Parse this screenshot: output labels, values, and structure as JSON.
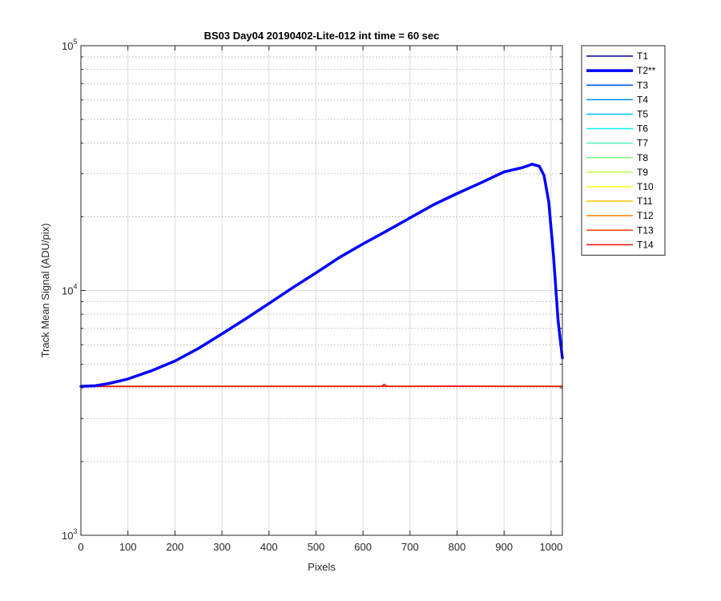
{
  "chart_data": {
    "type": "line",
    "title": "BS03 Day04 20190402-Lite-012 int time = 60 sec",
    "xlabel": "Pixels",
    "ylabel": "Track Mean Signal (ADU/pix)",
    "xlim": [
      0,
      1024
    ],
    "ylim": [
      1000,
      100000
    ],
    "yscale": "log",
    "grid": true,
    "legend_position": "outside-top-right",
    "xticks": [
      0,
      100,
      200,
      300,
      400,
      500,
      600,
      700,
      800,
      900,
      1000
    ],
    "xtick_labels": [
      "0",
      "100",
      "200",
      "300",
      "400",
      "500",
      "600",
      "700",
      "800",
      "900",
      "1000"
    ],
    "yticks": [
      1000,
      10000,
      100000
    ],
    "ytick_labels": [
      {
        "base": "10",
        "exp": "3"
      },
      {
        "base": "10",
        "exp": "4"
      },
      {
        "base": "10",
        "exp": "5"
      }
    ],
    "series": [
      {
        "name": "T1",
        "color": "#00008F",
        "highlight": false,
        "x": [
          0,
          1024
        ],
        "y": [
          4060,
          4060
        ]
      },
      {
        "name": "T2**",
        "color": "#0000FF",
        "highlight": true,
        "x": [
          0,
          30,
          60,
          100,
          150,
          200,
          250,
          300,
          350,
          400,
          450,
          500,
          550,
          600,
          650,
          700,
          750,
          800,
          850,
          900,
          940,
          960,
          975,
          985,
          995,
          1005,
          1015,
          1024
        ],
        "y": [
          4060,
          4080,
          4170,
          4350,
          4700,
          5150,
          5800,
          6650,
          7650,
          8850,
          10250,
          11800,
          13650,
          15500,
          17500,
          19800,
          22400,
          24900,
          27500,
          30500,
          31800,
          32800,
          32200,
          29500,
          23000,
          14000,
          7500,
          5300
        ]
      },
      {
        "name": "T3",
        "color": "#0050FF",
        "highlight": false,
        "x": [
          0,
          1024
        ],
        "y": [
          4060,
          4060
        ]
      },
      {
        "name": "T4",
        "color": "#0090FF",
        "highlight": false,
        "x": [
          0,
          1024
        ],
        "y": [
          4060,
          4060
        ]
      },
      {
        "name": "T5",
        "color": "#00BFFF",
        "highlight": false,
        "x": [
          0,
          1024
        ],
        "y": [
          4060,
          4060
        ]
      },
      {
        "name": "T6",
        "color": "#10EFEF",
        "highlight": false,
        "x": [
          0,
          1024
        ],
        "y": [
          4060,
          4060
        ]
      },
      {
        "name": "T7",
        "color": "#50EFBF",
        "highlight": false,
        "x": [
          0,
          1024
        ],
        "y": [
          4060,
          4060
        ]
      },
      {
        "name": "T8",
        "color": "#80FF80",
        "highlight": false,
        "x": [
          0,
          1024
        ],
        "y": [
          4060,
          4060
        ]
      },
      {
        "name": "T9",
        "color": "#BFFF40",
        "highlight": false,
        "x": [
          0,
          1024
        ],
        "y": [
          4060,
          4060
        ]
      },
      {
        "name": "T10",
        "color": "#FFFF00",
        "highlight": false,
        "x": [
          0,
          1024
        ],
        "y": [
          4060,
          4060
        ]
      },
      {
        "name": "T11",
        "color": "#FFC000",
        "highlight": false,
        "x": [
          0,
          1024
        ],
        "y": [
          4060,
          4060
        ]
      },
      {
        "name": "T12",
        "color": "#FF8000",
        "highlight": false,
        "x": [
          0,
          1024
        ],
        "y": [
          4060,
          4060
        ]
      },
      {
        "name": "T13",
        "color": "#FF4000",
        "highlight": false,
        "x": [
          0,
          1024
        ],
        "y": [
          4060,
          4060
        ]
      },
      {
        "name": "T14",
        "color": "#EE1010",
        "highlight": false,
        "x": [
          0,
          100,
          200,
          300,
          400,
          500,
          600,
          640,
          645,
          650,
          700,
          800,
          900,
          1000,
          1024
        ],
        "y": [
          4050,
          4050,
          4055,
          4055,
          4060,
          4060,
          4060,
          4060,
          4140,
          4060,
          4060,
          4070,
          4060,
          4055,
          4050
        ]
      }
    ]
  }
}
